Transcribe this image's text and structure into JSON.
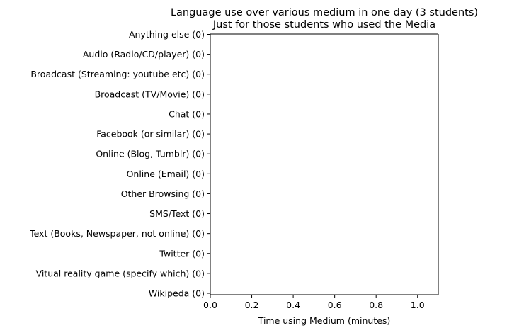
{
  "chart_data": {
    "type": "bar",
    "orientation": "horizontal",
    "title": "Language use over various medium in one day (3 students)",
    "subtitle": "Just for those students who used the Media",
    "xlabel": "Time using Medium (minutes)",
    "ylabel": "",
    "categories": [
      "Anything else (0)",
      "Audio (Radio/CD/player) (0)",
      "Broadcast (Streaming: youtube etc) (0)",
      "Broadcast (TV/Movie) (0)",
      "Chat (0)",
      "Facebook (or similar) (0)",
      "Online (Blog, Tumblr) (0)",
      "Online (Email) (0)",
      "Other Browsing (0)",
      "SMS/Text (0)",
      "Text (Books, Newspaper, not online) (0)",
      "Twitter (0)",
      "Vitual reality game (specify which) (0)",
      "Wikipeda (0)"
    ],
    "values": [
      0,
      0,
      0,
      0,
      0,
      0,
      0,
      0,
      0,
      0,
      0,
      0,
      0,
      0
    ],
    "xlim": [
      0.0,
      1.1
    ],
    "xticks": [
      "0.0",
      "0.2",
      "0.4",
      "0.6",
      "0.8",
      "1.0"
    ],
    "grid": false,
    "legend": "none"
  }
}
